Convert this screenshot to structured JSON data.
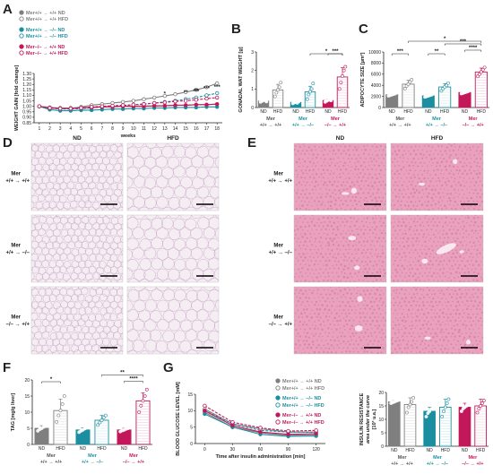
{
  "colors": {
    "wt": "#7f7f7f",
    "mer_fl": "#1b8fa0",
    "mer_ko": "#c2185b",
    "adipose_bg": "#f4eef3",
    "adipose_line": "#c9a3c6",
    "liver_bg": "#e9a2be",
    "liver_dark": "#d6789f"
  },
  "panel_labels": {
    "A": "A",
    "B": "B",
    "C": "C",
    "D": "D",
    "E": "E",
    "F": "F",
    "G": "G"
  },
  "legend_A": [
    {
      "label": "Mer+/+ → +/+ ND",
      "color": "#7f7f7f",
      "filled": true
    },
    {
      "label": "Mer+/+ → +/+ HFD",
      "color": "#7f7f7f",
      "filled": false
    },
    {
      "label": "Mer+/+ → –/– ND",
      "color": "#1b8fa0",
      "filled": true
    },
    {
      "label": "Mer+/+ → –/– HFD",
      "color": "#1b8fa0",
      "filled": false
    },
    {
      "label": "Mer–/– → +/+ ND",
      "color": "#c2185b",
      "filled": true
    },
    {
      "label": "Mer–/– → +/+ HFD",
      "color": "#c2185b",
      "filled": false
    }
  ],
  "histology": {
    "nd": "ND",
    "hfd": "HFD",
    "rows": [
      {
        "line1": "Mer",
        "line2": "+/+ → +/+"
      },
      {
        "line1": "Mer",
        "line2": "+/+ → –/–"
      },
      {
        "line1": "Mer",
        "line2": "–/– → +/+"
      }
    ]
  },
  "bar_groups": [
    {
      "title": "Mer",
      "sub": "+/+ → +/+",
      "color": "#555555"
    },
    {
      "title": "Mer",
      "sub": "+/+ → –/–",
      "color": "#1b8fa0"
    },
    {
      "title": "Mer",
      "sub": "–/– → +/+",
      "color": "#c2185b"
    }
  ],
  "nd_hfd": [
    "ND",
    "HFD"
  ],
  "chart_data": [
    {
      "panel": "A",
      "type": "line",
      "xlabel": "weeks",
      "ylabel": "WEIGHT GAIN [fold change]",
      "x": [
        1,
        2,
        3,
        4,
        5,
        6,
        7,
        8,
        9,
        10,
        11,
        12,
        13,
        14,
        15,
        16,
        17,
        18
      ],
      "xlim": [
        0.5,
        18.5
      ],
      "ylim": [
        0.85,
        1.3
      ],
      "yticks": [
        0.85,
        0.9,
        0.95,
        1.0,
        1.05,
        1.1,
        1.15,
        1.2,
        1.25,
        1.3
      ],
      "series": [
        {
          "name": "Mer+/+ → +/+ ND",
          "color": "#7f7f7f",
          "filled": true,
          "dash": false,
          "values": [
            1.0,
            0.99,
            0.985,
            0.985,
            0.99,
            0.99,
            0.995,
            1.0,
            1.0,
            1.0,
            1.005,
            1.0,
            1.005,
            1.01,
            1.01,
            1.015,
            1.015,
            1.02
          ]
        },
        {
          "name": "Mer+/+ → +/+ HFD",
          "color": "#7f7f7f",
          "filled": false,
          "dash": false,
          "values": [
            1.0,
            0.99,
            0.98,
            0.98,
            0.995,
            1.01,
            1.02,
            1.03,
            1.04,
            1.05,
            1.065,
            1.08,
            1.095,
            1.11,
            1.13,
            1.15,
            1.175,
            1.21
          ]
        },
        {
          "name": "Mer+/+ → –/– ND",
          "color": "#1b8fa0",
          "filled": true,
          "dash": false,
          "values": [
            1.0,
            0.97,
            0.96,
            0.96,
            0.965,
            0.965,
            0.97,
            0.975,
            0.975,
            0.98,
            0.98,
            0.985,
            0.985,
            0.99,
            0.99,
            0.99,
            0.995,
            0.995
          ]
        },
        {
          "name": "Mer+/+ → –/– HFD",
          "color": "#1b8fa0",
          "filled": false,
          "dash": true,
          "values": [
            1.0,
            0.985,
            0.975,
            0.975,
            0.98,
            0.985,
            0.995,
            1.0,
            1.005,
            1.015,
            1.02,
            1.03,
            1.04,
            1.05,
            1.065,
            1.08,
            1.1,
            1.12
          ]
        },
        {
          "name": "Mer–/– → +/+ ND",
          "color": "#c2185b",
          "filled": true,
          "dash": false,
          "values": [
            1.0,
            0.985,
            0.98,
            0.98,
            0.985,
            0.99,
            0.995,
            0.995,
            1.0,
            1.0,
            1.0,
            1.005,
            1.005,
            1.01,
            1.01,
            1.015,
            1.015,
            1.02
          ]
        },
        {
          "name": "Mer–/– → +/+ HFD",
          "color": "#c2185b",
          "filled": false,
          "dash": true,
          "values": [
            1.0,
            0.985,
            0.98,
            0.98,
            0.985,
            0.995,
            1.0,
            1.005,
            1.01,
            1.015,
            1.02,
            1.03,
            1.035,
            1.045,
            1.05,
            1.06,
            1.07,
            1.08
          ]
        }
      ],
      "annotations": [
        "*",
        "**",
        "**",
        "***",
        "***",
        "***"
      ]
    },
    {
      "panel": "B",
      "type": "bar",
      "ylabel": "GONADAL WAT WEIGHT [g]",
      "ylim": [
        0,
        3
      ],
      "yticks": [
        0,
        1,
        2,
        3
      ],
      "categories": [
        "ND",
        "HFD",
        "ND",
        "HFD",
        "ND",
        "HFD"
      ],
      "values": [
        0.35,
        0.95,
        0.28,
        0.85,
        0.38,
        1.65
      ],
      "errors": [
        0.06,
        0.3,
        0.05,
        0.3,
        0.07,
        0.5
      ],
      "colors": [
        "#7f7f7f",
        "#7f7f7f",
        "#1b8fa0",
        "#1b8fa0",
        "#c2185b",
        "#c2185b"
      ],
      "filled": [
        true,
        false,
        true,
        false,
        true,
        false
      ],
      "points": [
        [
          0.3,
          0.35,
          0.4,
          0.38,
          0.32
        ],
        [
          0.6,
          0.8,
          0.95,
          1.1,
          1.35
        ],
        [
          0.22,
          0.27,
          0.3,
          0.25,
          0.32
        ],
        [
          0.45,
          0.7,
          0.85,
          1.0,
          1.3
        ],
        [
          0.3,
          0.35,
          0.4,
          0.42,
          0.38
        ],
        [
          1.0,
          1.35,
          1.7,
          2.0,
          2.2
        ]
      ],
      "significance": [
        {
          "from": 4,
          "to": 5,
          "label": "***"
        },
        {
          "from": 3,
          "to": 5,
          "label": "*"
        }
      ]
    },
    {
      "panel": "C",
      "type": "bar",
      "ylabel": "ADIPOCYTE SIZE [µm²]",
      "ylim": [
        0,
        10000
      ],
      "yticks": [
        0,
        2000,
        4000,
        6000,
        8000,
        10000
      ],
      "categories": [
        "ND",
        "HFD",
        "ND",
        "HFD",
        "ND",
        "HFD"
      ],
      "values": [
        2300,
        4200,
        2100,
        3700,
        2700,
        6400
      ],
      "errors": [
        150,
        700,
        150,
        600,
        150,
        700
      ],
      "colors": [
        "#7f7f7f",
        "#7f7f7f",
        "#1b8fa0",
        "#1b8fa0",
        "#c2185b",
        "#c2185b"
      ],
      "filled": [
        true,
        false,
        true,
        false,
        true,
        false
      ],
      "points": [
        [
          2100,
          2200,
          2300,
          2400,
          2500
        ],
        [
          3400,
          3900,
          4200,
          4600,
          5000
        ],
        [
          1900,
          2000,
          2100,
          2200,
          2300
        ],
        [
          3000,
          3400,
          3700,
          4000,
          4400
        ],
        [
          2500,
          2600,
          2700,
          2800,
          2900
        ],
        [
          5600,
          6000,
          6400,
          6800,
          7200
        ]
      ],
      "significance": [
        {
          "from": 0,
          "to": 1,
          "label": "***"
        },
        {
          "from": 2,
          "to": 3,
          "label": "**"
        },
        {
          "from": 4,
          "to": 5,
          "label": "****"
        },
        {
          "from": 3,
          "to": 5,
          "label": "***"
        },
        {
          "from": 1,
          "to": 5,
          "label": "*"
        }
      ]
    },
    {
      "panel": "F",
      "type": "bar",
      "ylabel": "TAG [mg/g liver]",
      "ylim": [
        0,
        20
      ],
      "yticks": [
        0,
        5,
        10,
        15,
        20
      ],
      "categories": [
        "ND",
        "HFD",
        "ND",
        "HFD",
        "ND",
        "HFD"
      ],
      "values": [
        5.0,
        10.5,
        4.5,
        7.5,
        4.5,
        13.5
      ],
      "errors": [
        0.8,
        3.5,
        0.6,
        1.5,
        0.5,
        2.5
      ],
      "colors": [
        "#7f7f7f",
        "#7f7f7f",
        "#1b8fa0",
        "#1b8fa0",
        "#c2185b",
        "#c2185b"
      ],
      "filled": [
        true,
        false,
        true,
        false,
        true,
        false
      ],
      "points": [
        [
          4.2,
          4.7,
          5.0,
          5.4,
          5.8
        ],
        [
          7.0,
          9.0,
          10.5,
          12.5,
          15.0
        ],
        [
          3.8,
          4.2,
          4.5,
          4.9,
          5.2
        ],
        [
          6.0,
          6.8,
          7.5,
          8.3,
          9.0
        ],
        [
          4.0,
          4.3,
          4.5,
          4.8,
          5.0
        ],
        [
          10.0,
          12.0,
          13.5,
          15.0,
          17.0
        ]
      ],
      "significance": [
        {
          "from": 0,
          "to": 1,
          "label": "*"
        },
        {
          "from": 4,
          "to": 5,
          "label": "****"
        },
        {
          "from": 3,
          "to": 5,
          "label": "**"
        }
      ]
    },
    {
      "panel": "G",
      "type": "line",
      "xlabel": "Time after insulin administration [min]",
      "ylabel": "BLOOD GLUCOSE LEVEL [mM]",
      "x": [
        0,
        30,
        60,
        90,
        120
      ],
      "xlim": [
        -10,
        130
      ],
      "ylim": [
        0,
        15
      ],
      "yticks": [
        0,
        5,
        10,
        15
      ],
      "series": [
        {
          "name": "Mer+/+ → +/+ ND",
          "color": "#7f7f7f",
          "filled": true,
          "dash": false,
          "values": [
            9.5,
            5.0,
            3.3,
            2.5,
            2.7
          ]
        },
        {
          "name": "Mer+/+ → +/+ HFD",
          "color": "#7f7f7f",
          "filled": false,
          "dash": false,
          "values": [
            10.5,
            6.0,
            4.5,
            3.5,
            3.5
          ]
        },
        {
          "name": "Mer+/+ → –/– ND",
          "color": "#1b8fa0",
          "filled": true,
          "dash": false,
          "values": [
            9.0,
            5.0,
            2.8,
            2.2,
            2.3
          ]
        },
        {
          "name": "Mer+/+ → –/– HFD",
          "color": "#1b8fa0",
          "filled": false,
          "dash": true,
          "values": [
            10.0,
            6.0,
            4.0,
            3.5,
            3.4
          ]
        },
        {
          "name": "Mer–/– → +/+ ND",
          "color": "#c2185b",
          "filled": true,
          "dash": false,
          "values": [
            10.0,
            5.5,
            3.5,
            2.8,
            3.0
          ]
        },
        {
          "name": "Mer–/– → +/+ HFD",
          "color": "#c2185b",
          "filled": false,
          "dash": true,
          "values": [
            11.5,
            6.5,
            4.8,
            3.8,
            4.0
          ]
        }
      ]
    },
    {
      "panel": "G-AUC",
      "type": "bar",
      "ylabel": "INSULIN RESISTANCE",
      "ylabel2": "area under the curve",
      "ylabel3": "[10³ u.a.]",
      "ylim": [
        0,
        20
      ],
      "yticks": [
        0,
        5,
        10,
        15,
        20
      ],
      "categories": [
        "ND",
        "HFD",
        "ND",
        "HFD",
        "ND",
        "HFD"
      ],
      "values": [
        16.5,
        15.5,
        13.0,
        14.5,
        14.5,
        15.0
      ],
      "errors": [
        0.5,
        2.5,
        1.5,
        3.0,
        1.5,
        2.5
      ],
      "colors": [
        "#7f7f7f",
        "#7f7f7f",
        "#1b8fa0",
        "#1b8fa0",
        "#c2185b",
        "#c2185b"
      ],
      "filled": [
        true,
        false,
        true,
        false,
        true,
        false
      ],
      "points": [
        [
          16.0,
          16.3,
          16.5,
          16.8,
          17.0
        ],
        [
          12.5,
          14.5,
          15.5,
          16.5,
          18.0
        ],
        [
          11.0,
          12.3,
          13.0,
          13.8,
          15.0
        ],
        [
          11.0,
          13.0,
          14.5,
          16.0,
          17.5
        ],
        [
          13.0,
          14.0,
          14.5,
          15.0,
          16.0
        ],
        [
          12.5,
          14.0,
          15.0,
          16.0,
          17.0
        ]
      ],
      "significance": []
    }
  ]
}
